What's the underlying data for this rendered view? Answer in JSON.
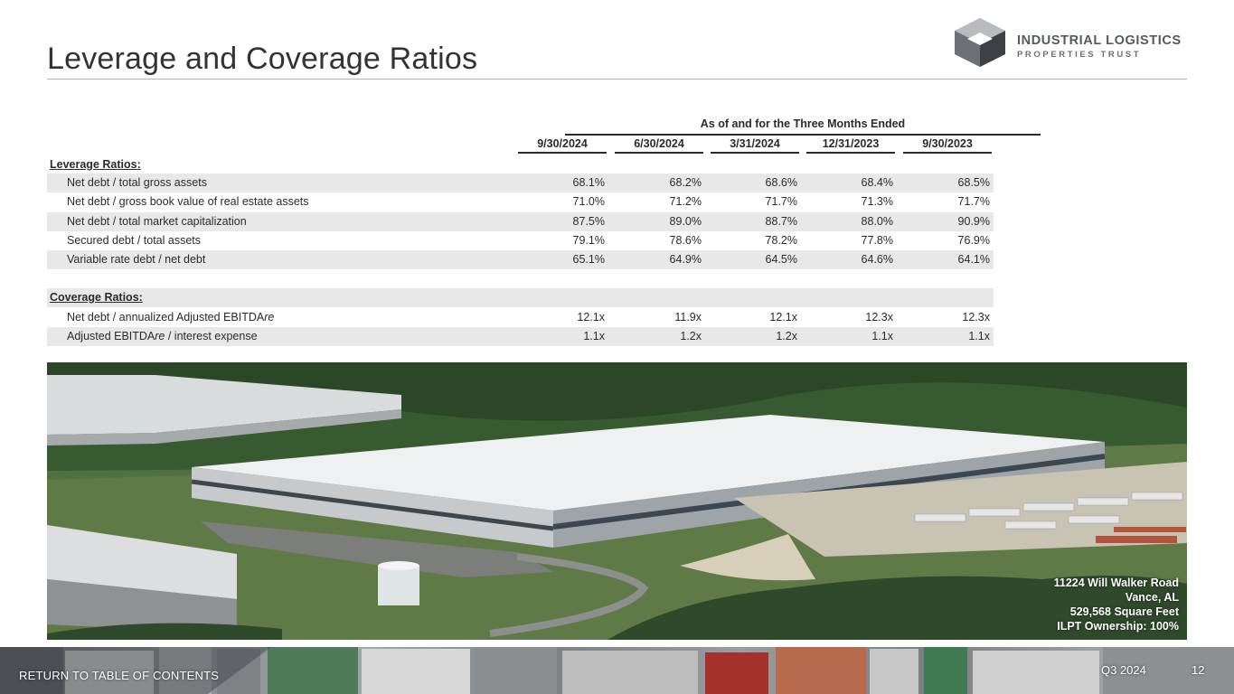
{
  "page": {
    "title": "Leverage and Coverage Ratios"
  },
  "logo": {
    "line1": "INDUSTRIAL LOGISTICS",
    "line2": "PROPERTIES TRUST",
    "icon": "cube-logo-icon"
  },
  "table": {
    "group_header": "As of and for the Three Months Ended",
    "columns": [
      "9/30/2024",
      "6/30/2024",
      "3/31/2024",
      "12/31/2023",
      "9/30/2023"
    ],
    "leverage_title": "Leverage Ratios:",
    "leverage_rows": [
      {
        "label": "Net debt / total gross assets",
        "values": [
          "68.1%",
          "68.2%",
          "68.6%",
          "68.4%",
          "68.5%"
        ]
      },
      {
        "label": "Net debt / gross book value of real estate assets",
        "values": [
          "71.0%",
          "71.2%",
          "71.7%",
          "71.3%",
          "71.7%"
        ]
      },
      {
        "label": "Net debt / total market capitalization",
        "values": [
          "87.5%",
          "89.0%",
          "88.7%",
          "88.0%",
          "90.9%"
        ]
      },
      {
        "label": "Secured debt / total assets",
        "values": [
          "79.1%",
          "78.6%",
          "78.2%",
          "77.8%",
          "76.9%"
        ]
      },
      {
        "label": "Variable rate debt / net debt",
        "values": [
          "65.1%",
          "64.9%",
          "64.5%",
          "64.6%",
          "64.1%"
        ]
      }
    ],
    "coverage_title": "Coverage Ratios:",
    "coverage_rows": [
      {
        "label_pre": "Net debt / annualized Adjusted EBITDA",
        "label_italic": "re",
        "label_post": "",
        "values": [
          "12.1x",
          "11.9x",
          "12.1x",
          "12.3x",
          "12.3x"
        ]
      },
      {
        "label_pre": "Adjusted EBITDA",
        "label_italic": "re",
        "label_post": " / interest expense",
        "values": [
          "1.1x",
          "1.2x",
          "1.2x",
          "1.1x",
          "1.1x"
        ]
      }
    ]
  },
  "photo": {
    "caption_lines": [
      "11224 Will Walker Road",
      "Vance, AL",
      "529,568 Square Feet",
      "ILPT Ownership: 100%"
    ]
  },
  "footer": {
    "return_link": "RETURN TO TABLE OF CONTENTS",
    "quarter": "Q3 2024",
    "page_number": "12"
  }
}
